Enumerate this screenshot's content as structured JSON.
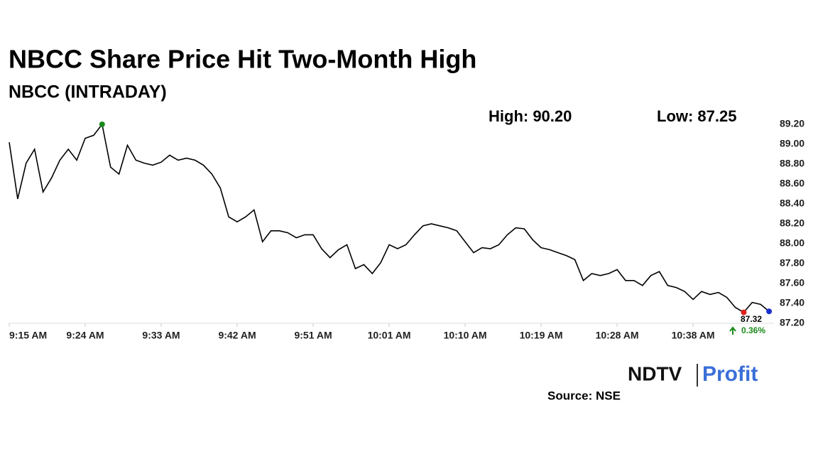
{
  "chart_data": {
    "type": "line",
    "title": "NBCC Share Price Hit Two-Month High",
    "subtitle": "NBCC (INTRADAY)",
    "high_label": "High: 90.20",
    "low_label": "Low: 87.25",
    "last_price_label": "87.32",
    "change_label": "0.36%",
    "source": "Source: NSE",
    "logo": {
      "left": "NDTV",
      "right": "Profit"
    },
    "color": "#000000",
    "categories": [
      "9:15 AM",
      null,
      null,
      null,
      null,
      null,
      null,
      null,
      null,
      "9:24 AM",
      null,
      null,
      null,
      null,
      null,
      null,
      null,
      null,
      "9:33 AM",
      null,
      null,
      null,
      null,
      null,
      null,
      null,
      null,
      "9:42 AM",
      null,
      null,
      null,
      null,
      null,
      null,
      null,
      null,
      "9:51 AM",
      null,
      null,
      null,
      null,
      null,
      null,
      null,
      null,
      "10:01 AM",
      null,
      null,
      null,
      null,
      null,
      null,
      null,
      null,
      "10:10 AM",
      null,
      null,
      null,
      null,
      null,
      null,
      null,
      null,
      "10:19 AM",
      null,
      null,
      null,
      null,
      null,
      null,
      null,
      null,
      "10:28 AM",
      null,
      null,
      null,
      null,
      null,
      null,
      null,
      null,
      "10:38 AM",
      null,
      null,
      null,
      null,
      null,
      null,
      null,
      null,
      null
    ],
    "values": [
      89.02,
      88.45,
      88.81,
      88.95,
      88.52,
      88.66,
      88.84,
      88.95,
      88.84,
      89.06,
      89.09,
      89.2,
      88.77,
      88.7,
      88.99,
      88.84,
      88.81,
      88.79,
      88.82,
      88.89,
      88.84,
      88.86,
      88.84,
      88.79,
      88.7,
      88.56,
      88.27,
      88.22,
      88.27,
      88.34,
      88.02,
      88.13,
      88.13,
      88.11,
      88.06,
      88.09,
      88.09,
      87.95,
      87.86,
      87.94,
      87.99,
      87.75,
      87.79,
      87.7,
      87.81,
      87.99,
      87.95,
      87.99,
      88.09,
      88.18,
      88.2,
      88.18,
      88.16,
      88.13,
      88.02,
      87.91,
      87.96,
      87.95,
      87.99,
      88.09,
      88.16,
      88.15,
      88.04,
      87.96,
      87.94,
      87.91,
      87.88,
      87.84,
      87.63,
      87.7,
      87.68,
      87.7,
      87.74,
      87.63,
      87.63,
      87.58,
      87.68,
      87.72,
      87.58,
      87.56,
      87.52,
      87.44,
      87.52,
      87.49,
      87.51,
      87.46,
      87.36,
      87.31,
      87.41,
      87.39,
      87.32
    ],
    "markers": [
      {
        "index": 11,
        "color": "#1a8a1a"
      },
      {
        "index": 87,
        "color": "#e0201c"
      },
      {
        "index": 90,
        "color": "#1a2fd0"
      }
    ],
    "ylim": [
      87.2,
      89.2
    ],
    "yticks": [
      {
        "value": 87.2,
        "label": "87.20"
      },
      {
        "value": 87.4,
        "label": "87.40"
      },
      {
        "value": 87.6,
        "label": "87.60"
      },
      {
        "value": 87.8,
        "label": "87.80"
      },
      {
        "value": 88,
        "label": "88.00"
      },
      {
        "value": 88.2,
        "label": "88.20"
      },
      {
        "value": 88.4,
        "label": "88.40"
      },
      {
        "value": 88.6,
        "label": "88.60"
      },
      {
        "value": 88.8,
        "label": "88.80"
      },
      {
        "value": 89,
        "label": "89.00"
      },
      {
        "value": 89.2,
        "label": "89.20"
      }
    ],
    "grid": false
  }
}
